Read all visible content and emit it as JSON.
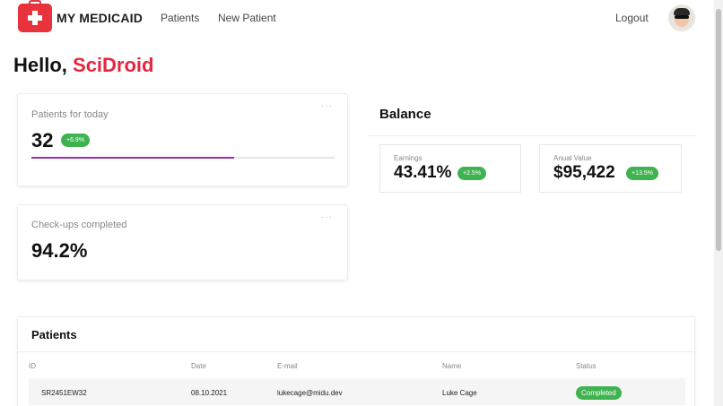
{
  "nav": {
    "brand": "MY MEDICAID",
    "links": [
      "Patients",
      "New Patient"
    ],
    "logout": "Logout"
  },
  "greeting": {
    "prefix": "Hello, ",
    "name": "SciDroid"
  },
  "cards": {
    "patients_today": {
      "label": "Patients for today",
      "value": "32",
      "badge": "+6.9%",
      "progress": 0.67
    },
    "checkups": {
      "label": "Check-ups completed",
      "value": "94.2%"
    }
  },
  "balance": {
    "title": "Balance",
    "earnings": {
      "label": "Earnings",
      "value": "43.41%",
      "badge": "+2.5%"
    },
    "annual": {
      "label": "Anual Value",
      "value": "$95,422",
      "badge": "+13.5%"
    }
  },
  "patients": {
    "title": "Patients",
    "columns": [
      "ID",
      "Date",
      "E-mail",
      "Name",
      "Status"
    ],
    "rows": [
      {
        "id": "SR2451EW32",
        "date": "08.10.2021",
        "email": "lukecage@midu.dev",
        "name": "Luke Cage",
        "status": "Completed"
      }
    ]
  },
  "colors": {
    "accent": "#e8253f",
    "success": "#3fb34f",
    "progress": "#9b2fae"
  }
}
